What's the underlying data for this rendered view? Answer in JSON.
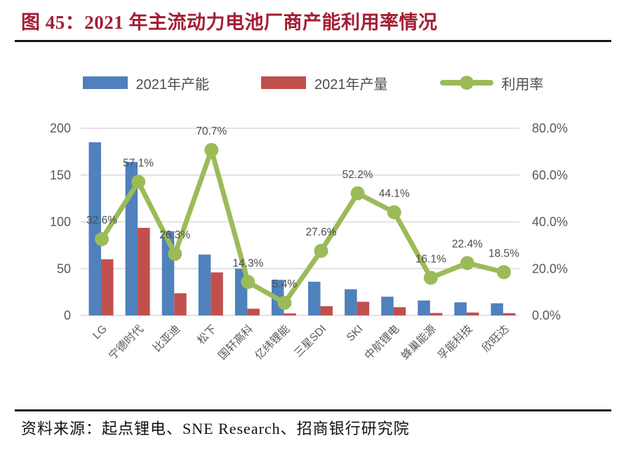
{
  "header": {
    "title": "图 45：2021 年主流动力电池厂商产能利用率情况"
  },
  "legend": [
    {
      "name": "capacity",
      "label": "2021年产能",
      "type": "bar",
      "color": "#4f81bd"
    },
    {
      "name": "production",
      "label": "2021年产量",
      "type": "bar",
      "color": "#c0504d"
    },
    {
      "name": "utilization",
      "label": "利用率",
      "type": "line",
      "color": "#9bbb59"
    }
  ],
  "chart_data": {
    "type": "bar",
    "subtype": "combo-bar-line-dual-axis",
    "categories": [
      "LG",
      "宁德时代",
      "比亚迪",
      "松下",
      "国轩高科",
      "亿纬锂能",
      "三星SDI",
      "SKI",
      "中航锂电",
      "蜂巢能源",
      "孚能科技",
      "欣旺达"
    ],
    "series": [
      {
        "name": "2021年产能",
        "type": "bar",
        "axis": "left",
        "color": "#4f81bd",
        "values": [
          185,
          164,
          90,
          65,
          50,
          38,
          36,
          28,
          20,
          16,
          14,
          13
        ]
      },
      {
        "name": "2021年产量",
        "type": "bar",
        "axis": "left",
        "color": "#c0504d",
        "values": [
          60,
          93.6,
          23.7,
          46,
          7.2,
          2.1,
          9.9,
          14.6,
          8.8,
          2.6,
          3.1,
          2.4
        ]
      },
      {
        "name": "利用率",
        "type": "line",
        "axis": "right",
        "color": "#9bbb59",
        "values": [
          32.6,
          57.1,
          26.3,
          70.7,
          14.3,
          5.4,
          27.6,
          52.2,
          44.1,
          16.1,
          22.4,
          18.5
        ],
        "point_labels": [
          "32.6%",
          "57.1%",
          "26.3%",
          "70.7%",
          "14.3%",
          "5.4%",
          "27.6%",
          "52.2%",
          "44.1%",
          "16.1%",
          "22.4%",
          "18.5%"
        ]
      }
    ],
    "left_axis": {
      "min": 0,
      "max": 200,
      "step": 50,
      "ticks": [
        "0",
        "50",
        "100",
        "150",
        "200"
      ]
    },
    "right_axis": {
      "min": 0,
      "max": 80,
      "step": 20,
      "ticks": [
        "0.0%",
        "20.0%",
        "40.0%",
        "60.0%",
        "80.0%"
      ]
    },
    "grid": true,
    "legend_position": "top",
    "colors": {
      "gridline": "#d9d9d9",
      "axis_text": "#595959",
      "data_label_text": "#4d4d4d",
      "category_text": "#595959"
    }
  },
  "footer": {
    "source": "资料来源：起点锂电、SNE Research、招商银行研究院"
  }
}
